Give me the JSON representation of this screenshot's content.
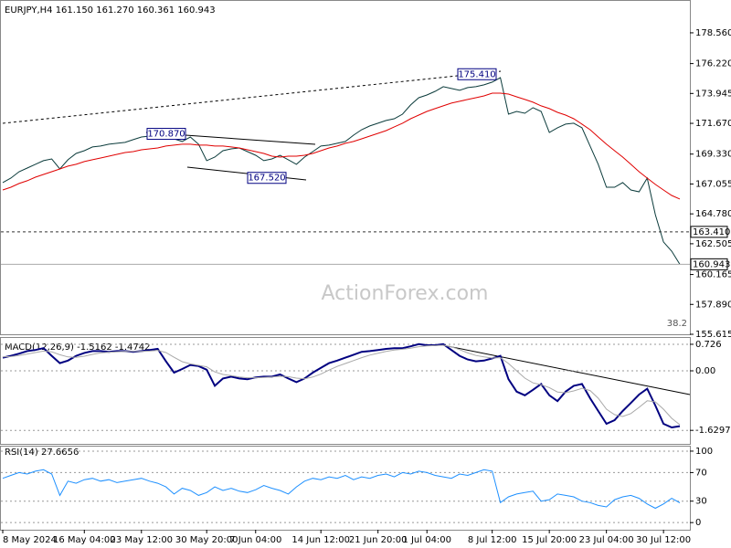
{
  "chart_data": [
    {
      "type": "line",
      "title": "EURJPY,H4 161.150 161.270 160.361 160.943",
      "watermark": "ActionForex.com",
      "level_label": "38.2",
      "ylim": [
        155.615,
        180.85
      ],
      "yticks": [
        {
          "value": 178.56,
          "label": "178.560"
        },
        {
          "value": 176.22,
          "label": "176.220"
        },
        173.945,
        {
          "value": 171.67,
          "label": "171.670"
        },
        {
          "value": 169.33,
          "label": "169.330"
        },
        167.055,
        {
          "value": 164.78,
          "label": "164.780"
        },
        162.505,
        160.165,
        {
          "value": 157.89,
          "label": "157.890"
        },
        155.615
      ],
      "grid": false,
      "series": [
        {
          "color": "#0b3b3b",
          "values": [
            167.16,
            167.5,
            167.99,
            168.27,
            168.55,
            168.83,
            168.96,
            168.2,
            168.9,
            169.38,
            169.59,
            169.87,
            169.94,
            170.08,
            170.15,
            170.22,
            170.43,
            170.63,
            170.7,
            170.77,
            170.63,
            170.49,
            170.29,
            170.63,
            170.08,
            168.83,
            169.1,
            169.59,
            169.73,
            169.8,
            169.52,
            169.24,
            168.83,
            168.96,
            169.24,
            168.9,
            168.55,
            169.1,
            169.52,
            169.94,
            170.01,
            170.15,
            170.29,
            170.77,
            171.19,
            171.47,
            171.68,
            171.89,
            172.02,
            172.37,
            173.07,
            173.62,
            173.83,
            174.11,
            174.46,
            174.32,
            174.18,
            174.39,
            174.46,
            174.6,
            174.81,
            175.15,
            172.37,
            172.58,
            172.44,
            172.86,
            172.58,
            170.98,
            171.33,
            171.61,
            171.68,
            171.33,
            169.94,
            168.55,
            166.81,
            166.81,
            167.16,
            166.6,
            166.46,
            167.5,
            164.72,
            162.64,
            161.94,
            160.943
          ]
        },
        {
          "color": "#e00000",
          "values": [
            166.6,
            166.81,
            167.09,
            167.3,
            167.57,
            167.78,
            167.99,
            168.2,
            168.41,
            168.55,
            168.76,
            168.9,
            169.03,
            169.17,
            169.31,
            169.45,
            169.52,
            169.66,
            169.73,
            169.8,
            169.94,
            170.01,
            170.08,
            170.08,
            170.01,
            170.01,
            169.94,
            169.94,
            169.87,
            169.8,
            169.66,
            169.52,
            169.38,
            169.17,
            169.1,
            169.17,
            169.17,
            169.24,
            169.38,
            169.59,
            169.8,
            169.94,
            170.15,
            170.29,
            170.49,
            170.7,
            170.91,
            171.12,
            171.4,
            171.68,
            172.02,
            172.3,
            172.58,
            172.79,
            173.0,
            173.21,
            173.35,
            173.49,
            173.62,
            173.76,
            173.97,
            173.97,
            173.9,
            173.69,
            173.49,
            173.28,
            173.0,
            172.79,
            172.51,
            172.3,
            172.02,
            171.61,
            171.19,
            170.63,
            170.08,
            169.59,
            169.1,
            168.55,
            167.99,
            167.5,
            167.02,
            166.6,
            166.18,
            165.91
          ]
        }
      ],
      "annotations": [
        {
          "value": 175.41,
          "label": "175.410"
        },
        {
          "value": 170.87,
          "label": "170.870"
        },
        {
          "value": 167.52,
          "label": "167.520"
        }
      ],
      "markers": [
        {
          "value": 163.41,
          "label": "163.410"
        },
        {
          "value": 160.943,
          "label": "160.943"
        }
      ]
    },
    {
      "type": "line",
      "title": "MACD(12,26,9) -1.5162 -1.4742",
      "ylim": [
        -2.0,
        0.9
      ],
      "yticks": [
        0.726,
        {
          "value": 0,
          "label": "0.00"
        },
        -1.6297
      ],
      "grid": true,
      "series": [
        {
          "color": "#000080",
          "values": [
            0.36,
            0.41,
            0.47,
            0.54,
            0.57,
            0.62,
            0.41,
            0.21,
            0.28,
            0.41,
            0.49,
            0.54,
            0.54,
            0.52,
            0.54,
            0.54,
            0.52,
            0.54,
            0.57,
            0.6,
            0.26,
            -0.05,
            0.05,
            0.16,
            0.13,
            0.03,
            -0.41,
            -0.21,
            -0.16,
            -0.21,
            -0.23,
            -0.18,
            -0.16,
            -0.16,
            -0.1,
            -0.21,
            -0.31,
            -0.21,
            -0.05,
            0.08,
            0.21,
            0.28,
            0.36,
            0.44,
            0.52,
            0.54,
            0.57,
            0.6,
            0.62,
            0.62,
            0.67,
            0.73,
            0.7,
            0.7,
            0.73,
            0.57,
            0.41,
            0.31,
            0.26,
            0.28,
            0.34,
            0.41,
            -0.23,
            -0.57,
            -0.67,
            -0.52,
            -0.36,
            -0.67,
            -0.83,
            -0.57,
            -0.41,
            -0.36,
            -0.75,
            -1.1,
            -1.45,
            -1.35,
            -1.1,
            -0.88,
            -0.65,
            -0.49,
            -0.95,
            -1.45,
            -1.55,
            -1.5162
          ]
        },
        {
          "color": "#a9a9a9",
          "values": [
            0.38,
            0.39,
            0.42,
            0.46,
            0.5,
            0.54,
            0.52,
            0.44,
            0.38,
            0.37,
            0.4,
            0.45,
            0.49,
            0.51,
            0.52,
            0.53,
            0.53,
            0.53,
            0.54,
            0.56,
            0.5,
            0.37,
            0.25,
            0.19,
            0.15,
            0.11,
            -0.03,
            -0.1,
            -0.13,
            -0.17,
            -0.19,
            -0.19,
            -0.18,
            -0.17,
            -0.15,
            -0.16,
            -0.2,
            -0.22,
            -0.17,
            -0.09,
            0.02,
            0.12,
            0.2,
            0.28,
            0.36,
            0.43,
            0.48,
            0.53,
            0.57,
            0.59,
            0.62,
            0.66,
            0.68,
            0.69,
            0.7,
            0.66,
            0.58,
            0.49,
            0.42,
            0.38,
            0.35,
            0.36,
            0.2,
            0.0,
            -0.2,
            -0.33,
            -0.38,
            -0.46,
            -0.58,
            -0.6,
            -0.55,
            -0.48,
            -0.54,
            -0.75,
            -1.05,
            -1.2,
            -1.25,
            -1.17,
            -1.0,
            -0.82,
            -0.85,
            -1.05,
            -1.3,
            -1.4742
          ]
        }
      ]
    },
    {
      "type": "line",
      "title": "RSI(14) 27.6656",
      "ylim": [
        -10,
        107.6
      ],
      "yticks": [
        100,
        70,
        30,
        0
      ],
      "grid": true,
      "categories": [
        "8 May 2024",
        null,
        null,
        null,
        null,
        null,
        null,
        null,
        null,
        null,
        "16 May 04:00",
        null,
        null,
        null,
        null,
        null,
        null,
        "23 May 12:00",
        null,
        null,
        null,
        null,
        null,
        null,
        null,
        "30 May 20:00",
        null,
        null,
        null,
        null,
        null,
        "7 Jun 04:00",
        null,
        null,
        null,
        null,
        null,
        null,
        null,
        "14 Jun 12:00",
        null,
        null,
        null,
        null,
        null,
        null,
        "21 Jun 20:00",
        null,
        null,
        null,
        null,
        null,
        "1 Jul 04:00",
        null,
        null,
        null,
        null,
        null,
        null,
        null,
        "8 Jul 12:00",
        null,
        null,
        null,
        null,
        null,
        null,
        "15 Jul 20:00",
        null,
        null,
        null,
        null,
        null,
        null,
        "23 Jul 04:00",
        null,
        null,
        null,
        null,
        null,
        null,
        "30 Jul 12:00",
        null,
        null
      ],
      "series": [
        {
          "color": "#1e90ff",
          "values": [
            62,
            66,
            70,
            68,
            72,
            74,
            68,
            38,
            58,
            55,
            60,
            62,
            58,
            60,
            56,
            58,
            60,
            62,
            58,
            55,
            50,
            40,
            48,
            45,
            38,
            42,
            50,
            45,
            48,
            44,
            42,
            46,
            52,
            48,
            45,
            40,
            50,
            58,
            62,
            60,
            64,
            62,
            66,
            60,
            64,
            62,
            66,
            68,
            64,
            70,
            68,
            72,
            70,
            66,
            64,
            62,
            68,
            66,
            70,
            74,
            72,
            28,
            36,
            40,
            42,
            44,
            30,
            32,
            40,
            38,
            36,
            30,
            28,
            24,
            22,
            32,
            36,
            38,
            34,
            26,
            20,
            26,
            34,
            27.6656
          ]
        }
      ]
    }
  ]
}
